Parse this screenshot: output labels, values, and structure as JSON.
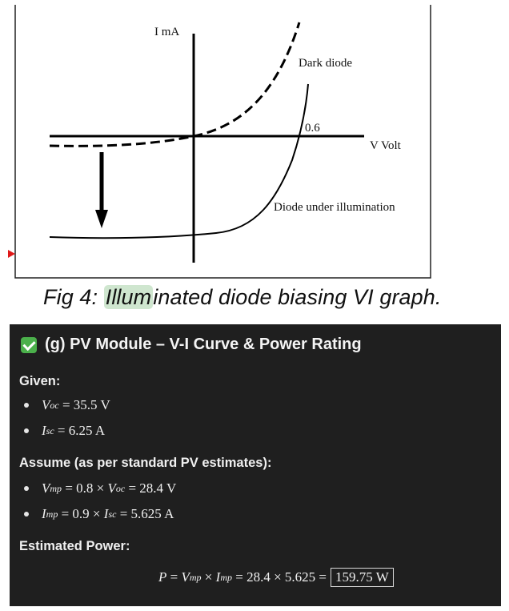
{
  "figure": {
    "y_axis_label": "I mA",
    "x_axis_label": "V Volt",
    "voltage_mark": "0.6",
    "dark_curve_label": "Dark diode",
    "illum_curve_label": "Diode under illumination",
    "caption_prefix": "Fig 4: ",
    "caption_highlight": "Illum",
    "caption_suffix": "inated diode biasing VI graph."
  },
  "panel": {
    "title": "(g) PV Module – V-I Curve & Power Rating",
    "given_label": "Given:",
    "given": {
      "voc_var": "V",
      "voc_sub": "oc",
      "voc_rhs": "= 35.5 V",
      "isc_var": "I",
      "isc_sub": "sc",
      "isc_rhs": "= 6.25 A"
    },
    "assume_label": "Assume (as per standard PV estimates):",
    "assume": {
      "vmp_var": "V",
      "vmp_sub": "mp",
      "vmp_mid": "= 0.8 ×",
      "vmp_ref_var": "V",
      "vmp_ref_sub": "oc",
      "vmp_rhs": "= 28.4 V",
      "imp_var": "I",
      "imp_sub": "mp",
      "imp_mid": "= 0.9 ×",
      "imp_ref_var": "I",
      "imp_ref_sub": "sc",
      "imp_rhs": "= 5.625 A"
    },
    "power_label": "Estimated Power:",
    "power": {
      "p_var": "P",
      "eq1": "=",
      "v_var": "V",
      "v_sub": "mp",
      "times": "×",
      "i_var": "I",
      "i_sub": "mp",
      "rhs": "= 28.4 × 5.625 =",
      "result": "159.75 W"
    }
  },
  "colors": {
    "panel_bg": "#1f1f1f",
    "check": "#4bb04b",
    "highlight": "#cfe6cf",
    "marker": "#e01818"
  },
  "icons": [
    "check-icon",
    "red-triangle-marker-icon"
  ]
}
